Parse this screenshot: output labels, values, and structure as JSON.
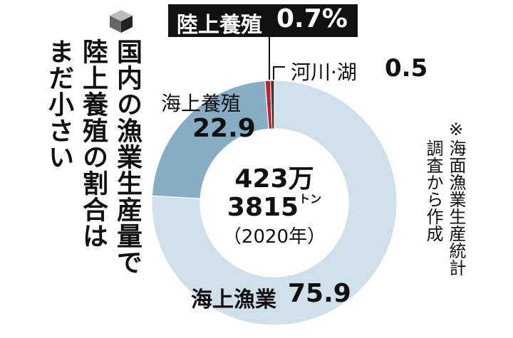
{
  "chart_data": {
    "type": "donut",
    "title": [
      "国内の漁業生産量で",
      "陸上養殖の割合は",
      "まだ小さい"
    ],
    "center_text": [
      "423万",
      "3815",
      "トン",
      "（2020年）"
    ],
    "note": [
      "※海面漁業生産統計",
      "調査から作成"
    ],
    "categories": [
      "海上漁業",
      "海上養殖",
      "陸上養殖",
      "河川·湖"
    ],
    "values": [
      75.9,
      22.9,
      0.7,
      0.5
    ],
    "value_labels": [
      "75.9",
      "22.9",
      "0.7%",
      "0.5"
    ],
    "colors": [
      "#cfe0ea",
      "#86adc3",
      "#c21f2b",
      "#3a3a3a"
    ]
  }
}
